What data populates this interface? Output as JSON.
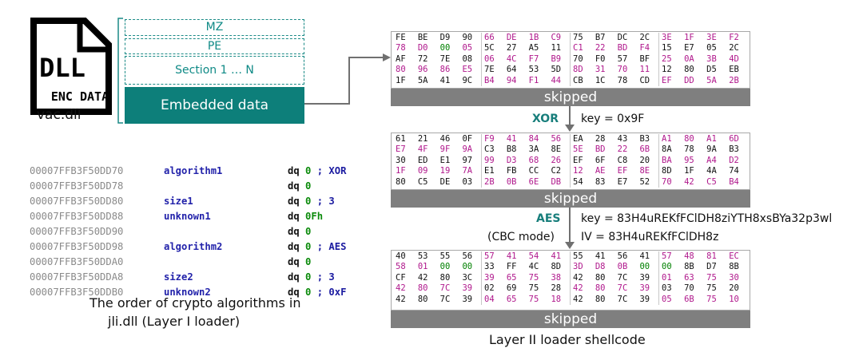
{
  "dll_icon": {
    "big_text": "DLL",
    "small_text": "ENC DATA",
    "icon": "dll-file-icon"
  },
  "dll_filename": "vac.dll",
  "layers": [
    "MZ",
    "PE",
    "Section 1 … N"
  ],
  "embedded_label": "Embedded data",
  "colors": {
    "teal": "#0d7f7a",
    "gray_bar": "#7f7f7f",
    "hex_black": "#111111",
    "hex_green": "#008000",
    "hex_magenta": "#b0188c"
  },
  "hex_blocks": [
    [
      [
        "FE",
        "BE",
        "D9",
        "90",
        "66",
        "DE",
        "1B",
        "C9",
        "75",
        "B7",
        "DC",
        "2C",
        "3E",
        "1F",
        "3E",
        "F2"
      ],
      [
        "78",
        "D0",
        "00",
        "05",
        "5C",
        "27",
        "A5",
        "11",
        "C1",
        "22",
        "BD",
        "F4",
        "15",
        "E7",
        "05",
        "2C"
      ],
      [
        "AF",
        "72",
        "7E",
        "08",
        "06",
        "4C",
        "F7",
        "B9",
        "70",
        "F0",
        "57",
        "BF",
        "25",
        "0A",
        "3B",
        "4D"
      ],
      [
        "80",
        "96",
        "86",
        "E5",
        "7E",
        "64",
        "53",
        "5D",
        "8D",
        "31",
        "70",
        "11",
        "12",
        "80",
        "D5",
        "EB"
      ],
      [
        "1F",
        "5A",
        "41",
        "9C",
        "B4",
        "94",
        "F1",
        "44",
        "CB",
        "1C",
        "78",
        "CD",
        "EF",
        "DD",
        "5A",
        "2B"
      ]
    ],
    [
      [
        "61",
        "21",
        "46",
        "0F",
        "F9",
        "41",
        "84",
        "56",
        "EA",
        "28",
        "43",
        "B3",
        "A1",
        "80",
        "A1",
        "6D"
      ],
      [
        "E7",
        "4F",
        "9F",
        "9A",
        "C3",
        "B8",
        "3A",
        "8E",
        "5E",
        "BD",
        "22",
        "6B",
        "8A",
        "78",
        "9A",
        "B3"
      ],
      [
        "30",
        "ED",
        "E1",
        "97",
        "99",
        "D3",
        "68",
        "26",
        "EF",
        "6F",
        "C8",
        "20",
        "BA",
        "95",
        "A4",
        "D2"
      ],
      [
        "1F",
        "09",
        "19",
        "7A",
        "E1",
        "FB",
        "CC",
        "C2",
        "12",
        "AE",
        "EF",
        "8E",
        "8D",
        "1F",
        "4A",
        "74"
      ],
      [
        "80",
        "C5",
        "DE",
        "03",
        "2B",
        "0B",
        "6E",
        "DB",
        "54",
        "83",
        "E7",
        "52",
        "70",
        "42",
        "C5",
        "B4"
      ]
    ],
    [
      [
        "40",
        "53",
        "55",
        "56",
        "57",
        "41",
        "54",
        "41",
        "55",
        "41",
        "56",
        "41",
        "57",
        "48",
        "81",
        "EC"
      ],
      [
        "58",
        "01",
        "00",
        "00",
        "33",
        "FF",
        "4C",
        "8D",
        "3D",
        "D8",
        "0B",
        "00",
        "00",
        "8B",
        "D7",
        "8B"
      ],
      [
        "CF",
        "42",
        "80",
        "3C",
        "39",
        "65",
        "75",
        "38",
        "42",
        "80",
        "7C",
        "39",
        "01",
        "63",
        "75",
        "30"
      ],
      [
        "42",
        "80",
        "7C",
        "39",
        "02",
        "69",
        "75",
        "28",
        "42",
        "80",
        "7C",
        "39",
        "03",
        "70",
        "75",
        "20"
      ],
      [
        "42",
        "80",
        "7C",
        "39",
        "04",
        "65",
        "75",
        "18",
        "42",
        "80",
        "7C",
        "39",
        "05",
        "6B",
        "75",
        "10"
      ]
    ]
  ],
  "skipped_label": "skipped",
  "xor_step": {
    "op": "XOR",
    "key": "key = 0x9F"
  },
  "aes_step": {
    "op": "AES",
    "mode": "(CBC mode)",
    "key": "key = 83H4uREKfFClDH8ziYTH8xsBYa32p3wl",
    "iv": "IV = 83H4uREKfFClDH8z"
  },
  "result_caption": "Layer II loader shellcode",
  "asm_rows": [
    {
      "addr": "00007FFB3F50DD70",
      "label": "algorithm1",
      "op": "dq",
      "val": "0",
      "comment": "; XOR"
    },
    {
      "addr": "00007FFB3F50DD78",
      "label": "",
      "op": "dq",
      "val": "0",
      "comment": ""
    },
    {
      "addr": "00007FFB3F50DD80",
      "label": "size1",
      "op": "dq",
      "val": "0",
      "comment": "; 3"
    },
    {
      "addr": "00007FFB3F50DD88",
      "label": "unknown1",
      "op": "dq",
      "val": "0Fh",
      "comment": ""
    },
    {
      "addr": "00007FFB3F50DD90",
      "label": "",
      "op": "dq",
      "val": "0",
      "comment": ""
    },
    {
      "addr": "00007FFB3F50DD98",
      "label": "algorithm2",
      "op": "dq",
      "val": "0",
      "comment": "; AES"
    },
    {
      "addr": "00007FFB3F50DDA0",
      "label": "",
      "op": "dq",
      "val": "0",
      "comment": ""
    },
    {
      "addr": "00007FFB3F50DDA8",
      "label": "size2",
      "op": "dq",
      "val": "0",
      "comment": "; 3"
    },
    {
      "addr": "00007FFB3F50DDB0",
      "label": "unknown2",
      "op": "dq",
      "val": "0",
      "comment": "; 0xF"
    }
  ],
  "asm_caption_line1": "The order of crypto algorithms in",
  "asm_caption_line2": "jli.dll (Layer I loader)"
}
